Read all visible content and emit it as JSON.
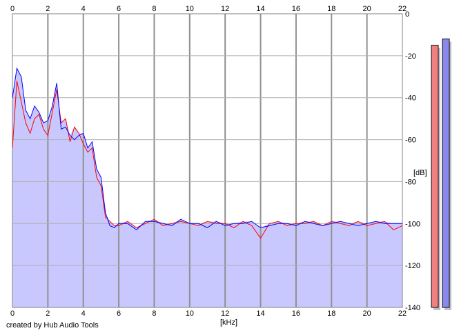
{
  "chart_data": {
    "type": "area",
    "title": "",
    "xlabel": "[kHz]",
    "ylabel": "[dB]",
    "xlim": [
      0,
      22
    ],
    "ylim": [
      -140,
      0
    ],
    "x_ticks": [
      "0",
      "2",
      "4",
      "6",
      "8",
      "10",
      "12",
      "14",
      "16",
      "18",
      "20",
      "22"
    ],
    "y_ticks": [
      "0",
      "-20",
      "-40",
      "-60",
      "-80",
      "-100",
      "-120",
      "-140"
    ],
    "grid": true,
    "fill_color": "#c8c8ff",
    "series": [
      {
        "color": "#ff0000",
        "x": [
          0,
          0.25,
          0.5,
          0.75,
          1,
          1.25,
          1.5,
          1.75,
          2,
          2.25,
          2.5,
          2.75,
          3,
          3.25,
          3.5,
          3.75,
          4,
          4.25,
          4.5,
          4.75,
          5,
          5.25,
          5.5,
          5.75,
          6,
          6.5,
          7,
          7.5,
          8,
          8.5,
          9,
          9.5,
          10,
          10.5,
          11,
          11.5,
          12,
          12.5,
          13,
          13.5,
          14,
          14.5,
          15,
          15.5,
          16,
          16.5,
          17,
          17.5,
          18,
          18.5,
          19,
          19.5,
          20,
          20.5,
          21,
          21.5,
          22
        ],
        "y": [
          -64,
          -32,
          -42,
          -52,
          -57,
          -50,
          -48,
          -55,
          -58,
          -47,
          -36,
          -52,
          -50,
          -61,
          -54,
          -57,
          -62,
          -66,
          -64,
          -78,
          -82,
          -97,
          -99,
          -101,
          -101,
          -99,
          -102,
          -100,
          -98,
          -101,
          -100,
          -99,
          -100,
          -101,
          -99,
          -100,
          -100,
          -102,
          -99,
          -101,
          -107,
          -100,
          -99,
          -101,
          -100,
          -100,
          -99,
          -101,
          -99,
          -100,
          -101,
          -99,
          -101,
          -100,
          -99,
          -103,
          -101
        ]
      },
      {
        "color": "#0000ff",
        "x": [
          0,
          0.25,
          0.5,
          0.75,
          1,
          1.25,
          1.5,
          1.75,
          2,
          2.25,
          2.5,
          2.75,
          3,
          3.25,
          3.5,
          3.75,
          4,
          4.25,
          4.5,
          4.75,
          5,
          5.25,
          5.5,
          5.75,
          6,
          6.5,
          7,
          7.5,
          8,
          8.5,
          9,
          9.5,
          10,
          10.5,
          11,
          11.5,
          12,
          12.5,
          13,
          13.5,
          14,
          14.5,
          15,
          15.5,
          16,
          16.5,
          17,
          17.5,
          18,
          18.5,
          19,
          19.5,
          20,
          20.5,
          21,
          21.5,
          22
        ],
        "y": [
          -40,
          -26,
          -30,
          -46,
          -50,
          -44,
          -47,
          -52,
          -51,
          -44,
          -33,
          -55,
          -54,
          -58,
          -60,
          -58,
          -57,
          -64,
          -61,
          -74,
          -78,
          -95,
          -101,
          -102,
          -100,
          -100,
          -103,
          -99,
          -99,
          -100,
          -101,
          -98,
          -100,
          -100,
          -102,
          -99,
          -101,
          -100,
          -100,
          -99,
          -102,
          -101,
          -100,
          -100,
          -101,
          -99,
          -100,
          -101,
          -100,
          -99,
          -100,
          -101,
          -100,
          -99,
          -100,
          -100,
          -100
        ]
      }
    ]
  },
  "level_meters": {
    "left": {
      "color": "#f08080",
      "level_db": -15
    },
    "right": {
      "color": "#8888ee",
      "level_db": -12
    }
  },
  "credit": "created by Hub Audio Tools"
}
